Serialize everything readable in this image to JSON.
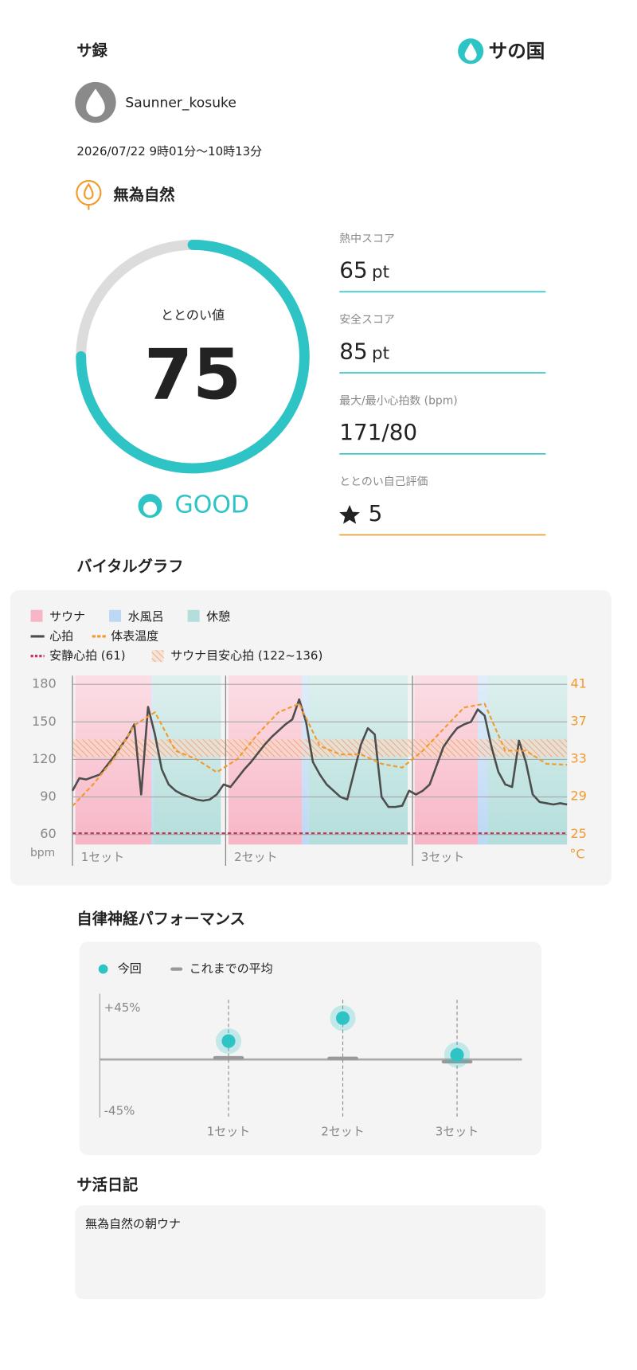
{
  "header": {
    "title": "サ録",
    "brand": "サの国"
  },
  "user": {
    "name": "Saunner_kosuke",
    "date": "2026/07/22 9時01分〜10時13分",
    "tag": "無為自然"
  },
  "gauge": {
    "label": "ととのい値",
    "value": 75,
    "max": 100,
    "rating": "GOOD"
  },
  "scores": [
    {
      "label": "熱中スコア",
      "value": 65,
      "unit": "pt"
    },
    {
      "label": "安全スコア",
      "value": 85,
      "unit": "pt"
    },
    {
      "label": "最大/最小心拍数 (bpm)",
      "value": "171/80"
    },
    {
      "label": "ととのい自己評価",
      "value": 5
    }
  ],
  "sections": {
    "vital": "バイタルグラフ",
    "autonomic": "自律神経パフォーマンス",
    "diary": "サ活日記"
  },
  "diary": {
    "text": "無為自然の朝ウナ"
  },
  "chart_data": [
    {
      "type": "line",
      "xlim": [
        0,
        72
      ],
      "ylim": [
        52,
        187
      ],
      "yticks": [
        60,
        90,
        120,
        150,
        180
      ],
      "y2lim": [
        23.9,
        41.9
      ],
      "y2ticks": [
        25,
        29,
        33,
        37,
        41
      ],
      "ylabel": "bpm",
      "y2label": "°C",
      "grid": true,
      "zones": [
        {
          "name": "サウナ",
          "color": "#f7b6c6",
          "spans": [
            [
              0.4,
              11.5
            ],
            [
              22.7,
              33.4
            ],
            [
              49.8,
              59.0
            ]
          ]
        },
        {
          "name": "水風呂",
          "color": "#bcd8f4",
          "spans": [
            [
              11.5,
              11.8
            ],
            [
              33.4,
              34.4
            ],
            [
              59.0,
              60.5
            ]
          ]
        },
        {
          "name": "休憩",
          "color": "#b4dedb",
          "spans": [
            [
              11.8,
              21.6
            ],
            [
              34.4,
              48.8
            ],
            [
              60.5,
              72
            ]
          ]
        }
      ],
      "series": [
        {
          "name": "心拍",
          "color": "#4d4d4d",
          "x": [
            0,
            1,
            2,
            3,
            4,
            5,
            6,
            7,
            8,
            9,
            10,
            11,
            12,
            13,
            14,
            15,
            16,
            17,
            18,
            19,
            20,
            21,
            22,
            23,
            24,
            25,
            26,
            27,
            28,
            29,
            30,
            31,
            32,
            33,
            34,
            35,
            36,
            37,
            38,
            39,
            40,
            41,
            42,
            43,
            44,
            45,
            46,
            47,
            48,
            49,
            50,
            51,
            52,
            53,
            54,
            55,
            56,
            57,
            58,
            59,
            60,
            61,
            62,
            63,
            64,
            65,
            66,
            67,
            68,
            69,
            70,
            71,
            72
          ],
          "values": [
            95,
            105,
            104,
            106,
            108,
            115,
            122,
            130,
            138,
            148,
            92,
            162,
            140,
            112,
            100,
            95,
            92,
            90,
            88,
            87,
            88,
            92,
            100,
            98,
            105,
            112,
            118,
            125,
            132,
            138,
            143,
            148,
            152,
            168,
            150,
            118,
            108,
            100,
            95,
            90,
            88,
            110,
            132,
            145,
            140,
            90,
            82,
            82,
            83,
            95,
            92,
            95,
            100,
            115,
            130,
            138,
            145,
            148,
            150,
            160,
            155,
            130,
            110,
            100,
            98,
            135,
            118,
            92,
            86,
            85,
            84,
            85,
            84
          ]
        },
        {
          "name": "体表温度",
          "color": "#f39a2c",
          "axis": "y2",
          "dashed": true,
          "x": [
            0,
            3,
            6,
            9,
            12,
            15,
            18,
            21,
            24,
            27,
            30,
            33,
            36,
            39,
            42,
            45,
            48,
            51,
            54,
            57,
            60,
            63,
            66,
            69,
            72
          ],
          "values": [
            28,
            30.3,
            33,
            36.6,
            38,
            33.9,
            33,
            31.6,
            33,
            35.7,
            38,
            38.9,
            34.4,
            33.5,
            33.5,
            32.5,
            32.1,
            33.9,
            36.2,
            38.5,
            38.9,
            33.9,
            33.9,
            32.5,
            32.4
          ]
        }
      ],
      "resting_hr": {
        "name": "安静心拍 (61)",
        "value": 61,
        "color": "#c0395a"
      },
      "target_hr": {
        "name": "サウナ目安心拍 (122~136)",
        "range": [
          122,
          136
        ],
        "color": "#f0a070"
      },
      "sets": {
        "labels": [
          "1セット",
          "2セット",
          "3セット"
        ],
        "x": [
          0,
          22.3,
          49.5
        ]
      }
    },
    {
      "type": "scatter",
      "categories": [
        "1セット",
        "2セット",
        "3セット"
      ],
      "ylim": [
        -52,
        52
      ],
      "yticks": [
        {
          "value": 45,
          "label": "+45%"
        },
        {
          "value": -45,
          "label": "-45%"
        }
      ],
      "series": [
        {
          "name": "今回",
          "color": "#2ec4c6",
          "values": [
            16,
            36,
            4
          ]
        },
        {
          "name": "これまでの平均",
          "color": "#999999",
          "values": [
            1.5,
            1,
            -2
          ]
        }
      ]
    }
  ]
}
